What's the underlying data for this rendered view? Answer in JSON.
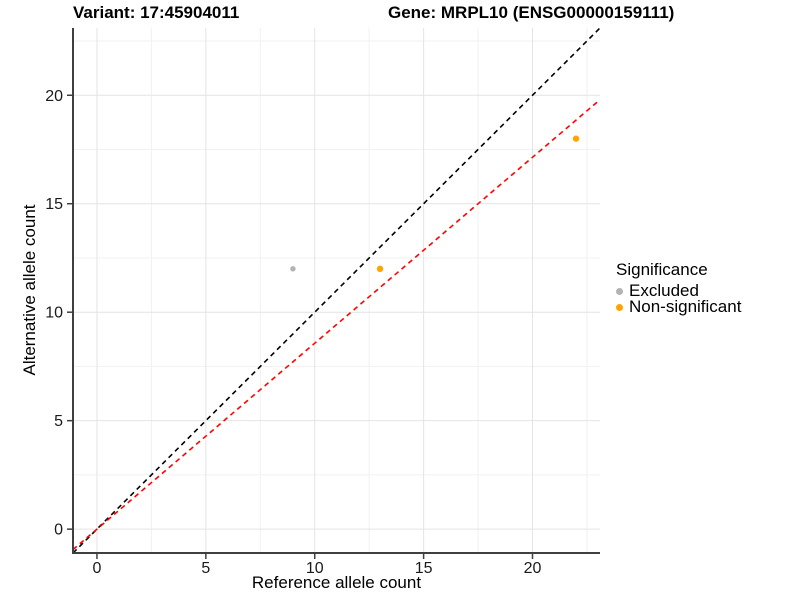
{
  "header": {
    "variant_title": "Variant: 17:45904011",
    "gene_title": "Gene: MRPL10 (ENSG00000159111)"
  },
  "chart_data": {
    "type": "scatter",
    "title_left": "Variant: 17:45904011",
    "title_right": "Gene: MRPL10 (ENSG00000159111)",
    "xlabel": "Reference allele count",
    "ylabel": "Alternative allele count",
    "xlim": [
      -1.1,
      23.1
    ],
    "ylim": [
      -1.1,
      23.1
    ],
    "x_ticks": [
      0,
      5,
      10,
      15,
      20
    ],
    "y_ticks": [
      0,
      5,
      10,
      15,
      20
    ],
    "x_minor_ticks": [
      2.5,
      7.5,
      12.5,
      17.5,
      22.5
    ],
    "y_minor_ticks": [
      2.5,
      7.5,
      12.5,
      17.5,
      22.5
    ],
    "grid": true,
    "series": [
      {
        "name": "Excluded",
        "color": "#b3b3b3",
        "size": 2.7,
        "points": [
          {
            "x": 9,
            "y": 12
          }
        ]
      },
      {
        "name": "Non-significant",
        "color": "#ffa500",
        "size": 3.2,
        "points": [
          {
            "x": 13,
            "y": 12
          },
          {
            "x": 22,
            "y": 18
          }
        ]
      }
    ],
    "lines": [
      {
        "name": "identity-line",
        "color": "#000000",
        "slope": 1.0,
        "intercept": 0,
        "dashed": true
      },
      {
        "name": "expected-ratio-line",
        "color": "#ff0000",
        "slope": 0.857,
        "intercept": 0,
        "dashed": true
      }
    ],
    "legend": {
      "title": "Significance",
      "position": "right",
      "items": [
        {
          "label": "Excluded",
          "color": "#b3b3b3"
        },
        {
          "label": "Non-significant",
          "color": "#ffa500"
        }
      ]
    },
    "style": {
      "background": "#ffffff",
      "grid_major_color": "#e4e4e4",
      "grid_minor_color": "#f1f1f1",
      "axis_line_color": "#3f3f3f",
      "tick_label_color": "#1a1a1a"
    }
  }
}
